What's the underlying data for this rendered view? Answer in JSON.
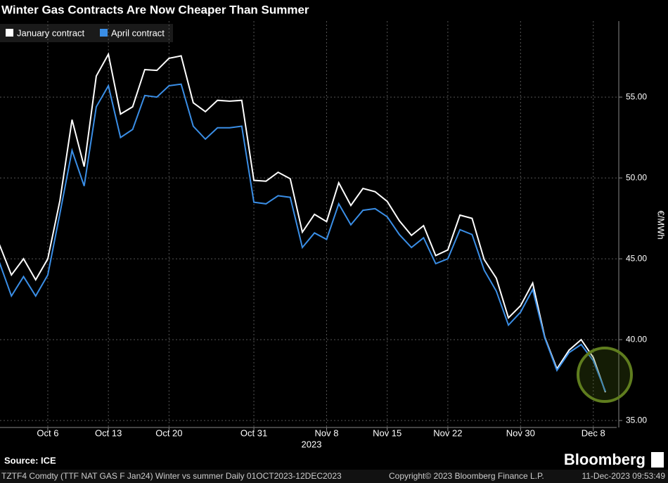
{
  "chart_data": {
    "type": "line",
    "title": "Winter Gas Contracts Are Now Cheaper Than Summer",
    "y_axis_label": "€/MWh",
    "x_axis_year": "2023",
    "source": "Source: ICE",
    "brand": "Bloomberg",
    "footer_ticker": "TZTF4 Comdty (TTF NAT GAS F    Jan24) Winter vs summer  Daily 01OCT2023-12DEC2023",
    "footer_copyright": "Copyright© 2023 Bloomberg Finance L.P.",
    "footer_timestamp": "11-Dec-2023 09:53:49",
    "x": [
      "2023-10-02",
      "2023-10-03",
      "2023-10-04",
      "2023-10-05",
      "2023-10-06",
      "2023-10-09",
      "2023-10-10",
      "2023-10-11",
      "2023-10-12",
      "2023-10-13",
      "2023-10-16",
      "2023-10-17",
      "2023-10-18",
      "2023-10-19",
      "2023-10-20",
      "2023-10-23",
      "2023-10-24",
      "2023-10-25",
      "2023-10-26",
      "2023-10-27",
      "2023-10-30",
      "2023-10-31",
      "2023-11-01",
      "2023-11-02",
      "2023-11-03",
      "2023-11-06",
      "2023-11-07",
      "2023-11-08",
      "2023-11-09",
      "2023-11-10",
      "2023-11-13",
      "2023-11-14",
      "2023-11-15",
      "2023-11-16",
      "2023-11-17",
      "2023-11-20",
      "2023-11-21",
      "2023-11-22",
      "2023-11-23",
      "2023-11-24",
      "2023-11-27",
      "2023-11-28",
      "2023-11-29",
      "2023-11-30",
      "2023-12-01",
      "2023-12-04",
      "2023-12-05",
      "2023-12-06",
      "2023-12-07",
      "2023-12-08",
      "2023-12-11"
    ],
    "series": [
      {
        "name": "January contract",
        "color": "#ffffff",
        "values": [
          45.9,
          44.0,
          45.0,
          43.7,
          45.0,
          48.6,
          53.6,
          50.7,
          56.3,
          57.65,
          53.95,
          54.4,
          56.7,
          56.65,
          57.4,
          57.55,
          54.65,
          54.1,
          54.8,
          54.75,
          54.8,
          49.85,
          49.8,
          50.35,
          49.95,
          46.65,
          47.75,
          47.3,
          49.7,
          48.3,
          49.35,
          49.15,
          48.55,
          47.35,
          46.45,
          47.05,
          45.2,
          45.55,
          47.7,
          47.5,
          44.95,
          43.8,
          41.35,
          42.1,
          43.5,
          40.15,
          38.2,
          39.35,
          40.0,
          38.9,
          36.75
        ]
      },
      {
        "name": "April contract",
        "color": "#3a8ee6",
        "values": [
          44.8,
          42.7,
          43.9,
          42.7,
          44.0,
          47.8,
          51.7,
          49.5,
          54.4,
          55.7,
          52.5,
          53.0,
          55.1,
          55.0,
          55.7,
          55.8,
          53.2,
          52.4,
          53.1,
          53.1,
          53.2,
          48.5,
          48.4,
          48.9,
          48.8,
          45.7,
          46.6,
          46.2,
          48.4,
          47.1,
          48.0,
          48.1,
          47.6,
          46.5,
          45.7,
          46.3,
          44.7,
          45.0,
          46.8,
          46.5,
          44.3,
          43.0,
          40.9,
          41.7,
          43.1,
          40.1,
          38.1,
          39.2,
          39.7,
          38.7,
          36.8
        ]
      }
    ],
    "ylim": [
      34.57,
      59.7
    ],
    "yticks": [
      {
        "value": 35,
        "label": "35.00"
      },
      {
        "value": 40,
        "label": "40.00"
      },
      {
        "value": 45,
        "label": "45.00"
      },
      {
        "value": 50,
        "label": "50.00"
      },
      {
        "value": 55,
        "label": "55.00"
      }
    ],
    "xticks": [
      {
        "value": "2023-10-06",
        "label": "Oct 6"
      },
      {
        "value": "2023-10-13",
        "label": "Oct 13"
      },
      {
        "value": "2023-10-20",
        "label": "Oct 20"
      },
      {
        "value": "2023-10-31",
        "label": "Oct 31"
      },
      {
        "value": "2023-11-08",
        "label": "Nov 8"
      },
      {
        "value": "2023-11-15",
        "label": "Nov 15"
      },
      {
        "value": "2023-11-22",
        "label": "Nov 22"
      },
      {
        "value": "2023-11-30",
        "label": "Nov 30"
      },
      {
        "value": "2023-12-08",
        "label": "Dec 8"
      }
    ],
    "grid": true,
    "legend": "top-left"
  }
}
